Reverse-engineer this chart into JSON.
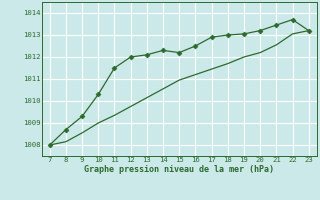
{
  "x_upper": [
    7,
    8,
    9,
    10,
    11,
    12,
    13,
    14,
    15,
    16,
    17,
    18,
    19,
    20,
    21,
    22,
    23
  ],
  "y_upper": [
    1008.0,
    1008.7,
    1009.3,
    1010.3,
    1011.5,
    1012.0,
    1012.1,
    1012.3,
    1012.2,
    1012.5,
    1012.9,
    1013.0,
    1013.05,
    1013.2,
    1013.45,
    1013.7,
    1013.2
  ],
  "x_lower": [
    7,
    8,
    9,
    10,
    11,
    12,
    13,
    14,
    15,
    16,
    17,
    18,
    19,
    20,
    21,
    22,
    23
  ],
  "y_lower": [
    1008.0,
    1008.15,
    1008.55,
    1009.0,
    1009.35,
    1009.75,
    1010.15,
    1010.55,
    1010.95,
    1011.2,
    1011.45,
    1011.7,
    1012.0,
    1012.2,
    1012.55,
    1013.05,
    1013.2
  ],
  "line_color": "#2d6a2d",
  "marker": "D",
  "marker_size": 2.5,
  "bg_color": "#cce9ea",
  "grid_color": "#ffffff",
  "xlabel": "Graphe pression niveau de la mer (hPa)",
  "xlim": [
    6.5,
    23.5
  ],
  "ylim": [
    1007.5,
    1014.5
  ],
  "yticks": [
    1008,
    1009,
    1010,
    1011,
    1012,
    1013,
    1014
  ],
  "xticks": [
    7,
    8,
    9,
    10,
    11,
    12,
    13,
    14,
    15,
    16,
    17,
    18,
    19,
    20,
    21,
    22,
    23
  ]
}
